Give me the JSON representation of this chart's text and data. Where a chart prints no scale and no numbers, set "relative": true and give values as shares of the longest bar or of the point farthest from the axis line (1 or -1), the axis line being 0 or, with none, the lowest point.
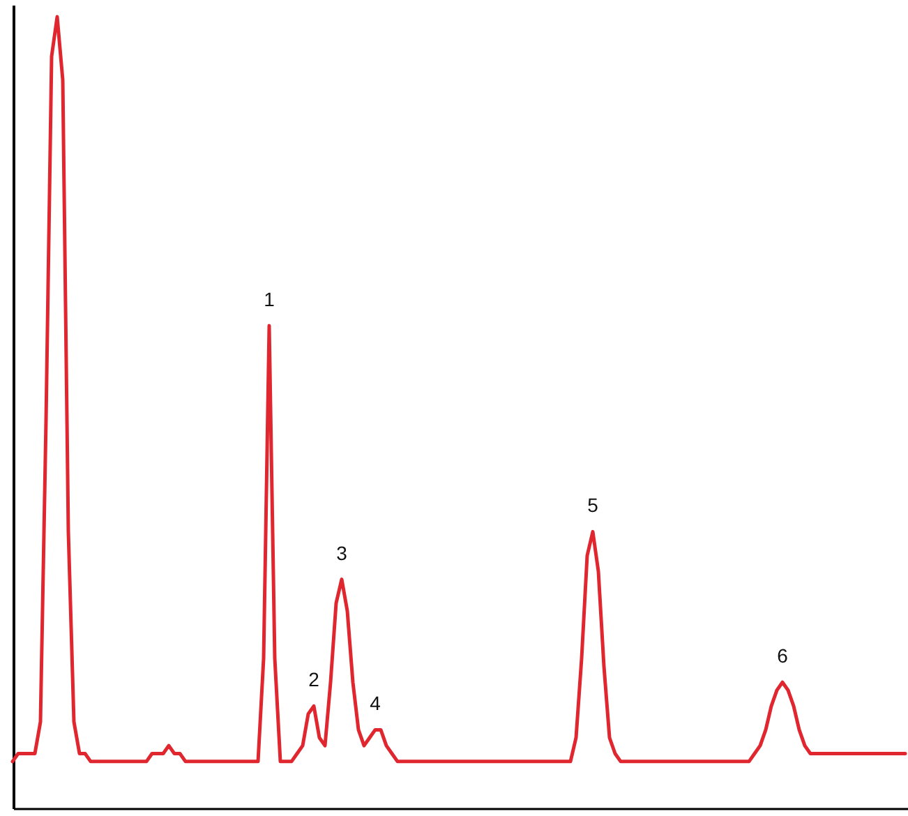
{
  "chart_data": {
    "type": "line",
    "relative": true,
    "color": "#e0262e",
    "categories": [
      null,
      null,
      null,
      null,
      null,
      null,
      null,
      null,
      null,
      null,
      null,
      null,
      null,
      null,
      null,
      null,
      null,
      null,
      null,
      null,
      null,
      null,
      null,
      null,
      null,
      null,
      null,
      null,
      null,
      null,
      null,
      null,
      null,
      null,
      null,
      null,
      null,
      null,
      null,
      null,
      null,
      null,
      null,
      null,
      null,
      null,
      null,
      null,
      null,
      null,
      null,
      null,
      null,
      null,
      null,
      null,
      null,
      null,
      null,
      null,
      null,
      null,
      null,
      null,
      null,
      null,
      null,
      null,
      null,
      null,
      null,
      null,
      null,
      null,
      null,
      null,
      null,
      null,
      null,
      null,
      null,
      null,
      null,
      null,
      null,
      null,
      null,
      null,
      null,
      null,
      null,
      null,
      null,
      null,
      null,
      null,
      null,
      null,
      null,
      null,
      null,
      null,
      null,
      null,
      null,
      null,
      null,
      null,
      null,
      null,
      null,
      null,
      null,
      null,
      null,
      null,
      null,
      null,
      null,
      null,
      null,
      null,
      null,
      null,
      null,
      null,
      null,
      null,
      null,
      null,
      null,
      null,
      null,
      null,
      null,
      null,
      null,
      null,
      null,
      null,
      null,
      null,
      null,
      null,
      null,
      null,
      null,
      null,
      null,
      null,
      null,
      null,
      null,
      null,
      null,
      null,
      null,
      null,
      null,
      null,
      null
    ],
    "values": [
      0.06,
      0.07,
      0.07,
      0.07,
      0.07,
      0.11,
      0.49,
      0.95,
      1,
      0.92,
      0.35,
      0.11,
      0.07,
      0.07,
      0.06,
      0.06,
      0.06,
      0.06,
      0.06,
      0.06,
      0.06,
      0.06,
      0.06,
      0.06,
      0.06,
      0.07,
      0.07,
      0.07,
      0.08,
      0.07,
      0.07,
      0.06,
      0.06,
      0.06,
      0.06,
      0.06,
      0.06,
      0.06,
      0.06,
      0.06,
      0.06,
      0.06,
      0.06,
      0.06,
      0.06,
      0.19,
      0.61,
      0.19,
      0.06,
      0.06,
      0.06,
      0.07,
      0.08,
      0.12,
      0.13,
      0.09,
      0.08,
      0.16,
      0.26,
      0.29,
      0.25,
      0.16,
      0.1,
      0.08,
      0.09,
      0.1,
      0.1,
      0.08,
      0.07,
      0.06,
      0.06,
      0.06,
      0.06,
      0.06,
      0.06,
      0.06,
      0.06,
      0.06,
      0.06,
      0.06,
      0.06,
      0.06,
      0.06,
      0.06,
      0.06,
      0.06,
      0.06,
      0.06,
      0.06,
      0.06,
      0.06,
      0.06,
      0.06,
      0.06,
      0.06,
      0.06,
      0.06,
      0.06,
      0.06,
      0.06,
      0.06,
      0.09,
      0.19,
      0.32,
      0.35,
      0.3,
      0.18,
      0.09,
      0.07,
      0.06,
      0.06,
      0.06,
      0.06,
      0.06,
      0.06,
      0.06,
      0.06,
      0.06,
      0.06,
      0.06,
      0.06,
      0.06,
      0.06,
      0.06,
      0.06,
      0.06,
      0.06,
      0.06,
      0.06,
      0.06,
      0.06,
      0.06,
      0.06,
      0.07,
      0.08,
      0.1,
      0.13,
      0.15,
      0.16,
      0.15,
      0.13,
      0.1,
      0.08,
      0.07,
      0.07,
      0.07,
      0.07,
      0.07,
      0.07,
      0.07,
      0.07,
      0.07,
      0.07,
      0.07,
      0.07,
      0.07,
      0.07,
      0.07,
      0.07,
      0.07,
      0.07
    ],
    "annotations": [
      {
        "text": "1",
        "y": 0.61
      },
      {
        "text": "2",
        "y": 0.13
      },
      {
        "text": "3",
        "y": 0.29
      },
      {
        "text": "4",
        "y": 0.1
      },
      {
        "text": "5",
        "y": 0.35
      },
      {
        "text": "6",
        "y": 0.16
      }
    ]
  }
}
